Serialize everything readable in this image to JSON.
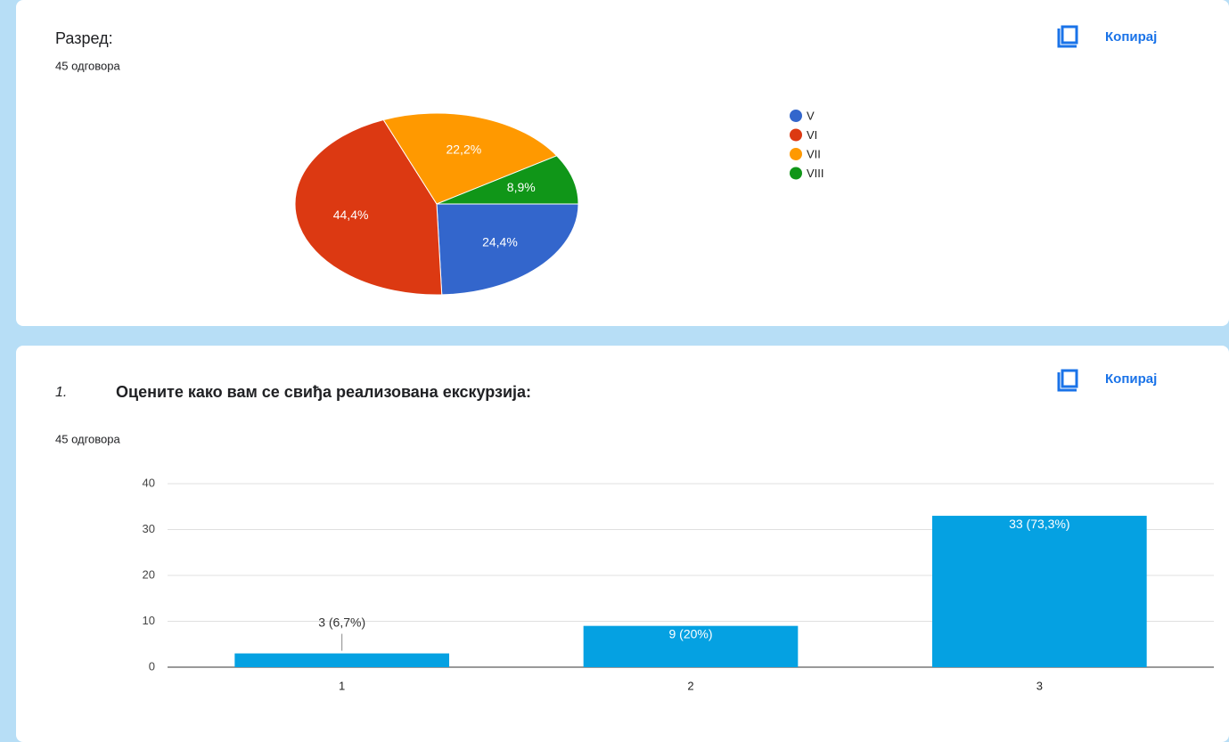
{
  "copy_label": "Копирај",
  "chart_data": [
    {
      "type": "pie",
      "title": "Разред:",
      "subtitle": "45 одговора",
      "categories": [
        "V",
        "VI",
        "VII",
        "VIII"
      ],
      "values": [
        24.4,
        44.4,
        22.2,
        8.9
      ],
      "value_labels": [
        "24,4%",
        "44,4%",
        "22,2%",
        "8,9%"
      ],
      "colors": [
        "#3366cc",
        "#dc3912",
        "#ff9900",
        "#109618"
      ],
      "legend": "right"
    },
    {
      "type": "bar",
      "number": "1.",
      "title": "Оцените како вам се свиђа реализована екскурзија:",
      "subtitle": "45 одговора",
      "categories": [
        "1",
        "2",
        "3"
      ],
      "values": [
        3,
        9,
        33
      ],
      "value_labels": [
        "3 (6,7%)",
        "9 (20%)",
        "33 (73,3%)"
      ],
      "color": "#05a1e2",
      "ylim": [
        0,
        40
      ],
      "yticks": [
        0,
        10,
        20,
        30,
        40
      ],
      "grid": true
    }
  ]
}
